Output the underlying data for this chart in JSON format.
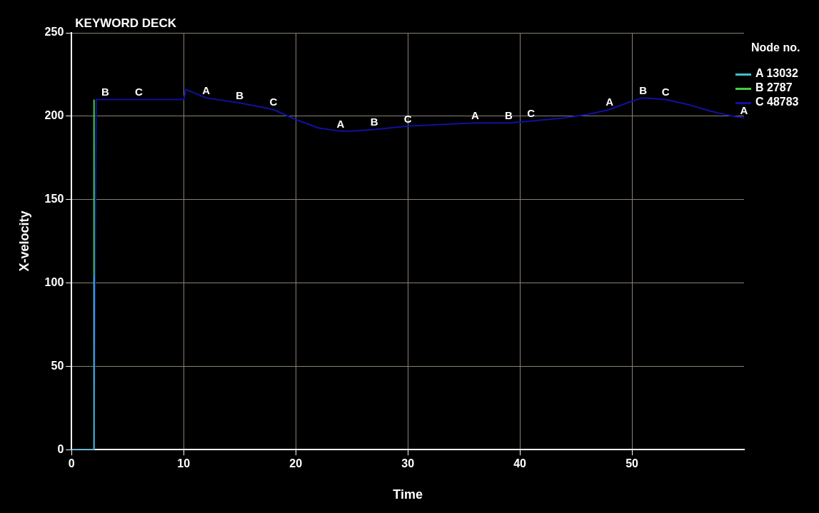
{
  "chart_data": {
    "type": "line",
    "title": "KEYWORD DECK",
    "xlabel": "Time",
    "ylabel": "X-velocity",
    "legend_title": "Node no.",
    "legend": "top right",
    "grid": true,
    "marker": "none",
    "line_style": "solid",
    "xlim": [
      0,
      60
    ],
    "xticks": [
      0,
      10,
      20,
      30,
      40,
      50
    ],
    "ylim": [
      0,
      250
    ],
    "yticks": [
      0,
      50,
      100,
      150,
      200,
      250
    ],
    "series": [
      {
        "name": "A 13032",
        "color": "#40c0c8",
        "x": [
          0,
          2,
          2
        ],
        "values": [
          0,
          0,
          105
        ]
      },
      {
        "name": "B 2787",
        "color": "#40d040",
        "x": [
          2,
          2
        ],
        "values": [
          105,
          210
        ]
      },
      {
        "name": "C 48783",
        "color": "#1010a0",
        "x": [
          0,
          2,
          2.2,
          3,
          6,
          10,
          10.2,
          12,
          15,
          18,
          20,
          22,
          24,
          25,
          27,
          30,
          33,
          36,
          39,
          41,
          44,
          46,
          48,
          50,
          51,
          53,
          55,
          57,
          59,
          60
        ],
        "values": [
          0,
          0,
          210,
          210,
          210,
          210,
          216,
          211,
          208,
          204,
          198,
          193,
          191,
          191,
          192,
          194,
          195,
          196,
          196,
          197,
          199,
          201,
          204,
          209,
          211,
          210,
          207,
          203,
          200,
          199
        ]
      }
    ],
    "annotations": [
      {
        "text": "B",
        "x": 3,
        "y": 210
      },
      {
        "text": "C",
        "x": 6,
        "y": 210
      },
      {
        "text": "A",
        "x": 12,
        "y": 211
      },
      {
        "text": "B",
        "x": 15,
        "y": 208
      },
      {
        "text": "C",
        "x": 18,
        "y": 204
      },
      {
        "text": "A",
        "x": 24,
        "y": 191
      },
      {
        "text": "B",
        "x": 27,
        "y": 192
      },
      {
        "text": "C",
        "x": 30,
        "y": 194
      },
      {
        "text": "A",
        "x": 36,
        "y": 196
      },
      {
        "text": "B",
        "x": 39,
        "y": 196
      },
      {
        "text": "C",
        "x": 41,
        "y": 197
      },
      {
        "text": "A",
        "x": 48,
        "y": 204
      },
      {
        "text": "B",
        "x": 51,
        "y": 211
      },
      {
        "text": "C",
        "x": 53,
        "y": 210
      },
      {
        "text": "A",
        "x": 60,
        "y": 199
      }
    ]
  }
}
